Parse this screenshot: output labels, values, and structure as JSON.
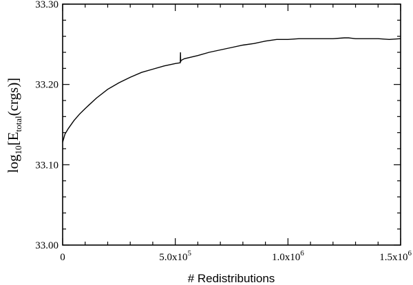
{
  "chart_data": {
    "type": "line",
    "title": "",
    "xlabel": "# Redistributions",
    "ylabel": {
      "prefix": "log",
      "prefix_sub": "10",
      "open": "[E",
      "e_sub": "total",
      "rest": "(crgs)]"
    },
    "xlim": [
      0,
      1500000
    ],
    "ylim": [
      33.0,
      33.3
    ],
    "x_ticks": [
      {
        "value": 0,
        "label": "0",
        "exp": ""
      },
      {
        "value": 500000,
        "label": "5.0x10",
        "exp": "5"
      },
      {
        "value": 1000000,
        "label": "1.0x10",
        "exp": "6"
      },
      {
        "value": 1500000,
        "label": "1.5x10",
        "exp": "6"
      }
    ],
    "y_ticks": [
      {
        "value": 33.0,
        "label": "33.00"
      },
      {
        "value": 33.1,
        "label": "33.10"
      },
      {
        "value": 33.2,
        "label": "33.20"
      },
      {
        "value": 33.3,
        "label": "33.30"
      }
    ],
    "x_minor_step": 100000,
    "y_minor_step": 0.02,
    "grid": false,
    "series": [
      {
        "color": "#000000",
        "x": [
          0,
          10000,
          25000,
          50000,
          75000,
          100000,
          150000,
          200000,
          250000,
          300000,
          350000,
          400000,
          450000,
          500000,
          522000,
          523000,
          524000,
          525000,
          526000,
          540000,
          600000,
          650000,
          700000,
          750000,
          800000,
          850000,
          900000,
          950000,
          1000000,
          1050000,
          1100000,
          1150000,
          1200000,
          1250000,
          1270000,
          1300000,
          1350000,
          1400000,
          1450000,
          1500000
        ],
        "y": [
          33.128,
          33.138,
          33.145,
          33.155,
          33.163,
          33.17,
          33.183,
          33.194,
          33.202,
          33.209,
          33.215,
          33.219,
          33.223,
          33.226,
          33.227,
          33.24,
          33.228,
          33.23,
          33.23,
          33.232,
          33.236,
          33.24,
          33.243,
          33.246,
          33.249,
          33.251,
          33.254,
          33.256,
          33.256,
          33.257,
          33.257,
          33.257,
          33.257,
          33.258,
          33.258,
          33.257,
          33.257,
          33.257,
          33.256,
          33.257
        ]
      }
    ]
  }
}
